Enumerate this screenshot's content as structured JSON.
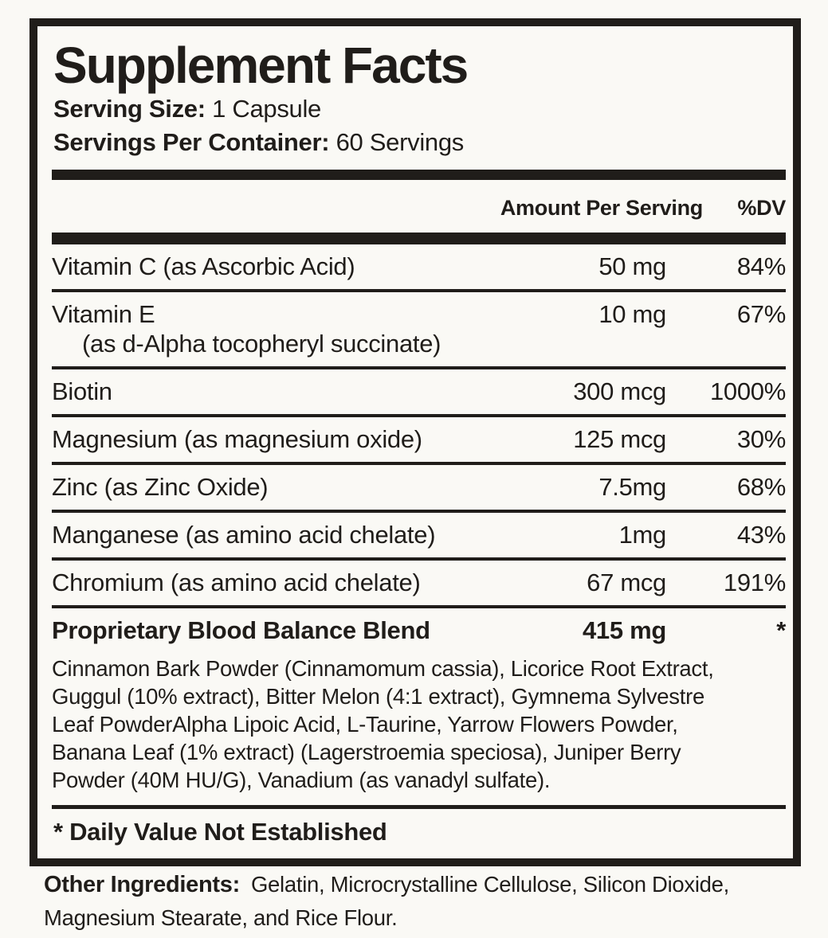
{
  "supplement_label": {
    "title": "Supplement Facts",
    "serving_size": {
      "label": "Serving Size:",
      "value": "1 Capsule"
    },
    "servings_per_container": {
      "label": "Servings Per Container:",
      "value": "60 Servings"
    },
    "table_header": {
      "amount": "Amount Per Serving",
      "dv": "%DV"
    },
    "rows": [
      {
        "name": "Vitamin C (as Ascorbic Acid)",
        "amount": "50 mg",
        "dv": "84%"
      },
      {
        "name": "Vitamin E",
        "name_line2": "(as d-Alpha tocopheryl succinate)",
        "amount": "10 mg",
        "dv": "67%"
      },
      {
        "name": "Biotin",
        "amount": "300 mcg",
        "dv": "1000%"
      },
      {
        "name": "Magnesium (as magnesium oxide)",
        "amount": "125 mcg",
        "dv": "30%"
      },
      {
        "name": "Zinc (as Zinc Oxide)",
        "amount": "7.5mg",
        "dv": "68%"
      },
      {
        "name": "Manganese (as amino acid chelate)",
        "amount": "1mg",
        "dv": "43%"
      },
      {
        "name": "Chromium (as amino acid chelate)",
        "amount": "67 mcg",
        "dv": "191%"
      }
    ],
    "blend": {
      "name": "Proprietary Blood Balance Blend",
      "amount": "415 mg",
      "dv": "*",
      "description_lines": [
        "Cinnamon Bark Powder (Cinnamomum cassia), Licorice Root Extract,",
        "Guggul (10% extract), Bitter Melon (4:1 extract), Gymnema Sylvestre",
        "Leaf PowderAlpha Lipoic Acid, L-Taurine, Yarrow Flowers Powder,",
        "Banana Leaf (1% extract) (Lagerstroemia speciosa), Juniper Berry",
        "Powder (40M HU/G), Vanadium (as vanadyl sulfate)."
      ]
    },
    "footnote": "* Daily Value Not Established"
  },
  "other_ingredients": {
    "label": "Other Ingredients:",
    "lines": [
      "Gelatin, Microcrystalline Cellulose, Silicon Dioxide,",
      "Magnesium Stearate, and Rice Flour."
    ]
  },
  "colors": {
    "ink": "#201d1a",
    "paper": "#faf9f5"
  }
}
